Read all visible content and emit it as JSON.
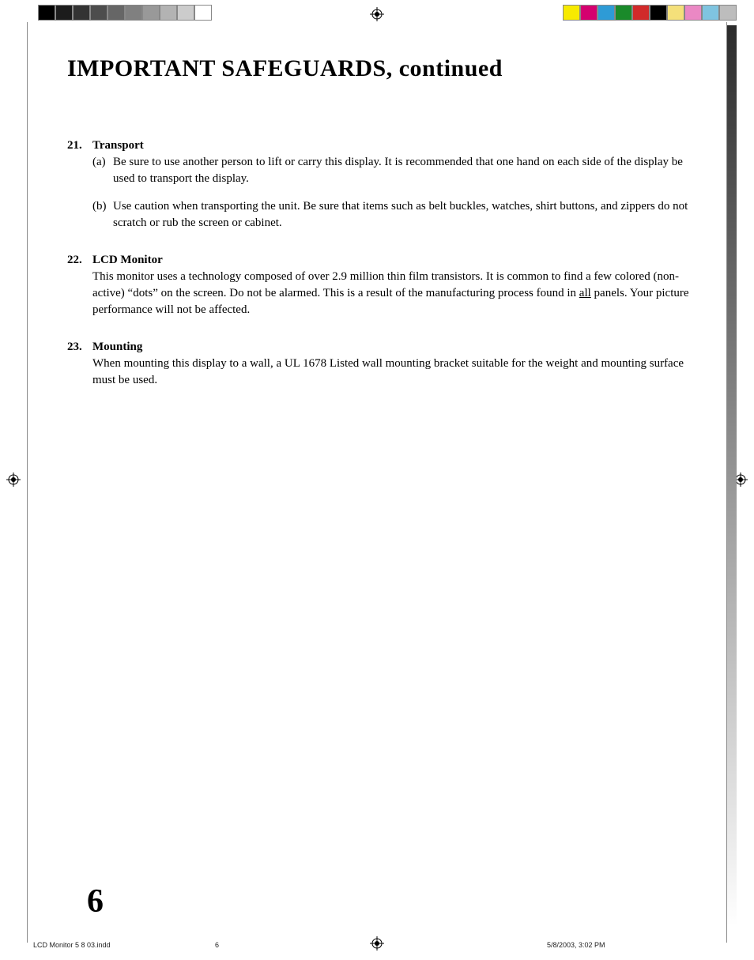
{
  "colorbar_left": [
    "#000000",
    "#1c1c1c",
    "#333333",
    "#4d4d4d",
    "#666666",
    "#808080",
    "#999999",
    "#b3b3b3",
    "#cccccc",
    "#ffffff"
  ],
  "colorbar_right": [
    "#f7ea00",
    "#d4006f",
    "#2e9bd6",
    "#1a8a2a",
    "#d12a2a",
    "#000000",
    "#f4e07a",
    "#ea88c4",
    "#7fc4e0",
    "#bdbdbd"
  ],
  "title": "IMPORTANT SAFEGUARDS, continued",
  "items": [
    {
      "num": "21.",
      "title": "Transport",
      "subs": [
        {
          "label": "(a)",
          "text": "Be sure to use another person to lift or carry this display.  It is recommended that one hand on each side of the display be used to transport the display."
        },
        {
          "label": "(b)",
          "text": "Use caution when transporting the unit.  Be sure that items such as belt buckles, watches, shirt buttons, and zippers do not scratch or rub the screen or cabinet."
        }
      ]
    },
    {
      "num": "22.",
      "title": "LCD Monitor",
      "body_pre": "This monitor uses a technology composed of over 2.9 million thin film transistors.  It is common to find a few colored (non-active) “dots” on the screen.  Do not be alarmed.  This is a result of the manufacturing process found in ",
      "body_underlined": "all",
      "body_post": " panels.  Your picture performance will not be affected."
    },
    {
      "num": "23.",
      "title": "Mounting",
      "body": "When mounting this display to a wall, a UL 1678 Listed wall mounting bracket suitable for the weight and mounting surface must be used."
    }
  ],
  "page_number": "6",
  "footer": {
    "file": "LCD Monitor 5 8 03.indd",
    "pg": "6",
    "date": "5/8/2003, 3:02 PM"
  }
}
